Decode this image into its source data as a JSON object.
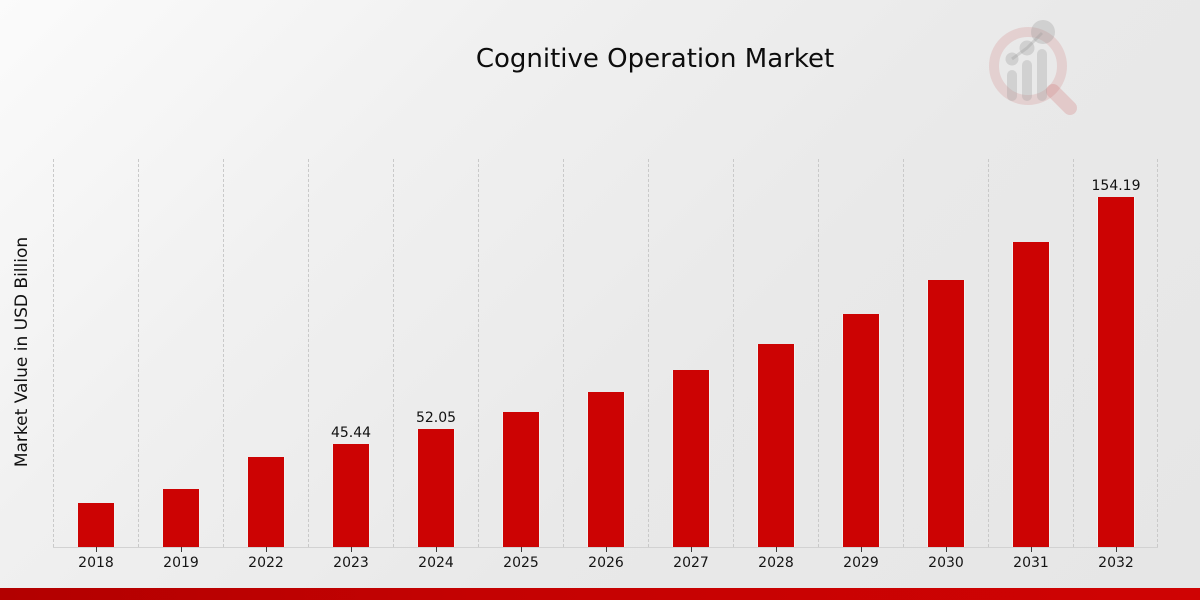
{
  "header": {
    "title": "Cognitive Operation Market"
  },
  "branding": {
    "logo_icon": "magnifier-bar-chart-watermark",
    "ring_color": "rgba(195,60,60,0.16)",
    "bars_color": "rgba(140,140,140,0.28)"
  },
  "footer": {
    "accent_bar_color": "#c40202"
  },
  "chart_data": {
    "type": "bar",
    "title": "Cognitive Operation Market",
    "xlabel": "",
    "ylabel": "Market Value in USD Billion",
    "categories": [
      "2018",
      "2019",
      "2022",
      "2023",
      "2024",
      "2025",
      "2026",
      "2027",
      "2028",
      "2029",
      "2030",
      "2031",
      "2032"
    ],
    "values": [
      19.4,
      25.6,
      39.6,
      45.44,
      52.05,
      59.6,
      68.2,
      78.2,
      89.5,
      102.6,
      117.5,
      134.6,
      154.19
    ],
    "data_labels": [
      "",
      "",
      "",
      "45.44",
      "52.05",
      "",
      "",
      "",
      "",
      "",
      "",
      "",
      "154.19"
    ],
    "bar_color": "#cc0303",
    "ylim": [
      0,
      171
    ],
    "grid": "vertical-dashed",
    "legend_position": "none",
    "y_tick_labels_visible": false
  }
}
